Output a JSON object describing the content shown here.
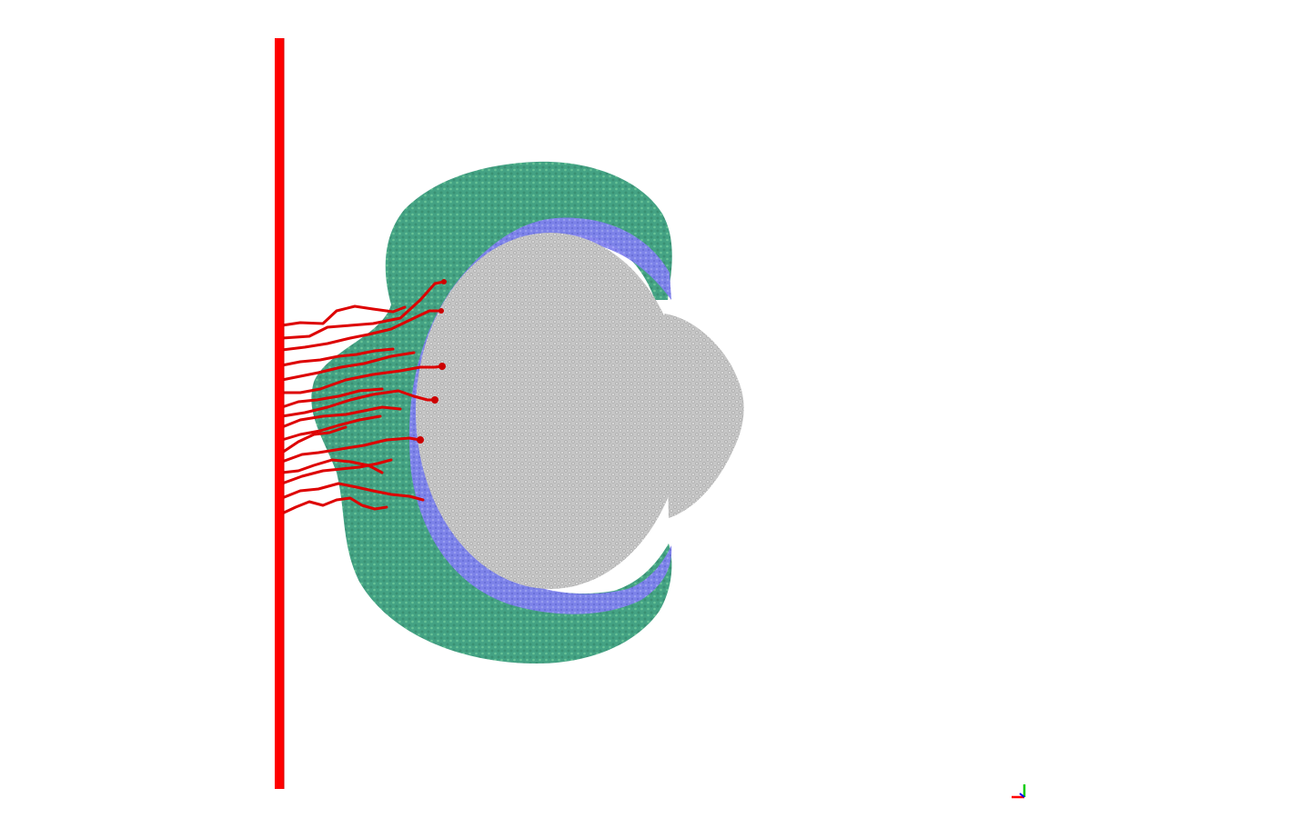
{
  "scene": {
    "background": "#ffffff",
    "wall_color": "#ff0000",
    "outer_shell_color": "#2e9e6e",
    "inner_shell_color": "#7a7cf0",
    "core_color": "#c8c8c8",
    "core_texture_color": "#8a8a8a",
    "filament_color": "#dd0000",
    "filament_count": 16
  },
  "axes_triad": {
    "x_color": "#ff0000",
    "y_color": "#00cc00",
    "z_color": "#0000ff"
  }
}
